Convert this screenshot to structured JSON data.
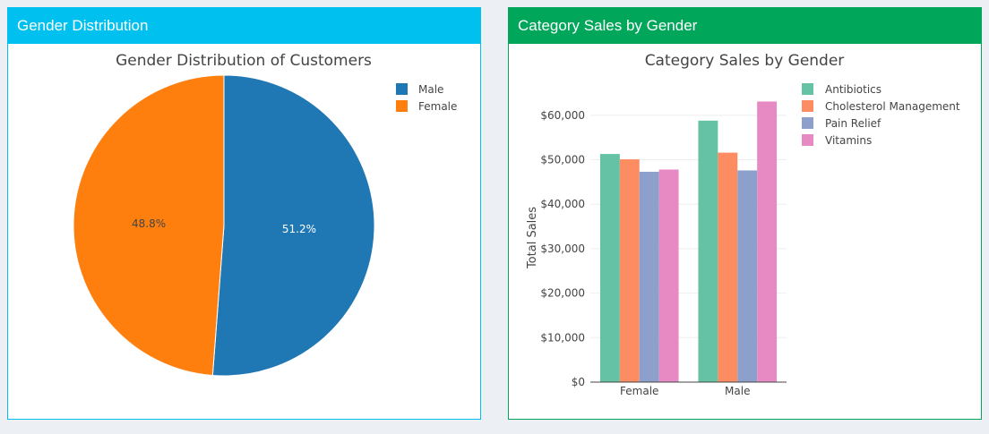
{
  "panels": {
    "left": {
      "header": "Gender Distribution"
    },
    "right": {
      "header": "Category Sales by Gender"
    }
  },
  "chart_data": [
    {
      "type": "pie",
      "title": "Gender Distribution of Customers",
      "labels": [
        "Male",
        "Female"
      ],
      "values": [
        51.2,
        48.8
      ],
      "text_labels": [
        "51.2%",
        "48.8%"
      ],
      "colors": [
        "#1f77b4",
        "#ff7f0e"
      ],
      "label_colors": [
        "#ffffff",
        "#444444"
      ],
      "legend": "top-right"
    },
    {
      "type": "bar",
      "title": "Category Sales by Gender",
      "categories": [
        "Female",
        "Male"
      ],
      "series": [
        {
          "name": "Antibiotics",
          "color": "#66c2a5",
          "values": [
            51300,
            58800
          ]
        },
        {
          "name": "Cholesterol Management",
          "color": "#fc8d62",
          "values": [
            50100,
            51600
          ]
        },
        {
          "name": "Pain Relief",
          "color": "#8da0cb",
          "values": [
            47300,
            47600
          ]
        },
        {
          "name": "Vitamins",
          "color": "#e78ac3",
          "values": [
            47800,
            63100
          ]
        }
      ],
      "ylabel": "Total Sales",
      "xlabel": "",
      "ylim": [
        0,
        65000
      ],
      "yticks": [
        0,
        10000,
        20000,
        30000,
        40000,
        50000,
        60000
      ],
      "ytick_labels": [
        "$0",
        "$10,000",
        "$20,000",
        "$30,000",
        "$40,000",
        "$50,000",
        "$60,000"
      ],
      "grid": true,
      "legend": "top-right"
    }
  ]
}
